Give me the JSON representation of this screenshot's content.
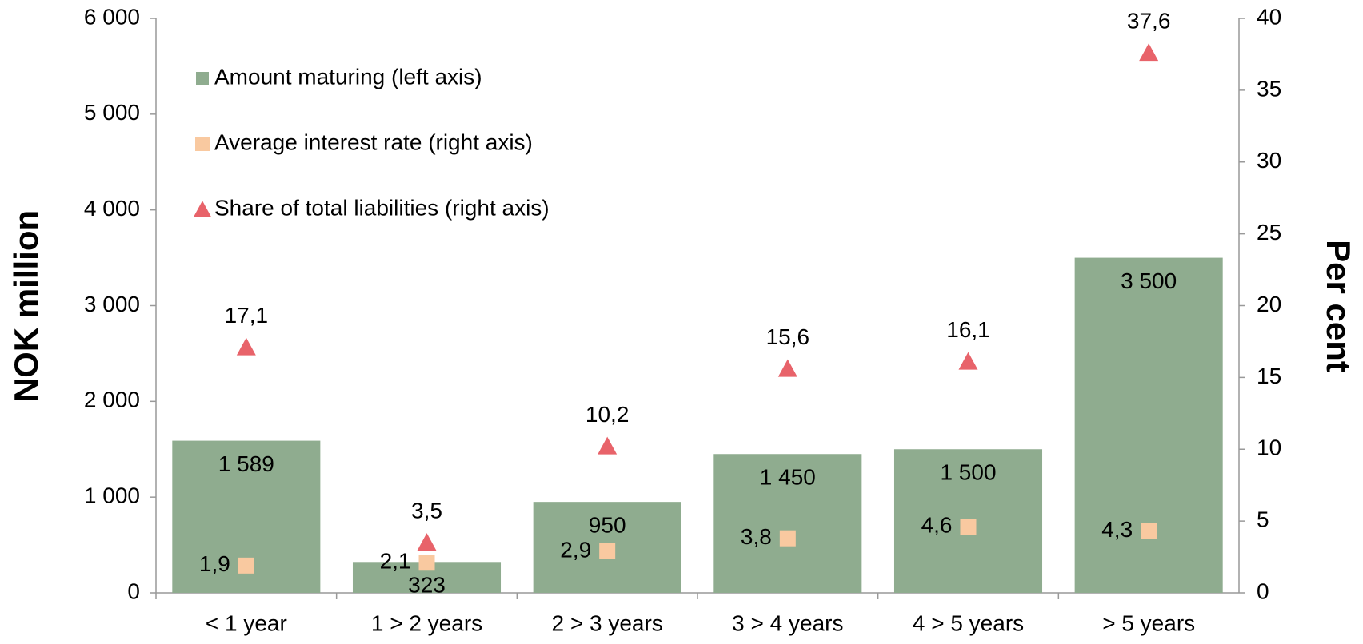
{
  "chart_data": {
    "type": "bar",
    "categories": [
      "< 1 year",
      "1 > 2 years",
      "2 > 3 years",
      "3 > 4 years",
      "4 > 5 years",
      "> 5 years"
    ],
    "ylabel": "NOK million",
    "y2label": "Per cent",
    "ylim": [
      0,
      6000
    ],
    "yticks": [
      0,
      {
        "value": 1000,
        "label": "1 000"
      },
      {
        "value": 2000,
        "label": "2 000"
      },
      {
        "value": 3000,
        "label": "3 000"
      },
      {
        "value": 4000,
        "label": "4 000"
      },
      {
        "value": 5000,
        "label": "5 000"
      },
      {
        "value": 6000,
        "label": "6 000"
      }
    ],
    "y2lim": [
      0,
      40
    ],
    "y2ticks": [
      0,
      5,
      10,
      15,
      20,
      25,
      30,
      35,
      40
    ],
    "legend": "upper left",
    "series": [
      {
        "name": "Amount maturing (left axis)",
        "type": "bar",
        "color": "#8fac8f",
        "values": [
          1589,
          323,
          950,
          1450,
          1500,
          3500
        ],
        "value_labels": [
          "1 589",
          "323",
          "950",
          "1 450",
          "1 500",
          "3 500"
        ]
      },
      {
        "name": "Average interest rate (right axis)",
        "type": "scatter",
        "marker": "square",
        "axis": "y2",
        "color": "#f9c9a0",
        "values": [
          1.9,
          2.1,
          2.9,
          3.8,
          4.6,
          4.3
        ],
        "value_labels": [
          "1,9",
          "2,1",
          "2,9",
          "3,8",
          "4,6",
          "4,3"
        ]
      },
      {
        "name": "Share of total liabilities (right axis)",
        "type": "scatter",
        "marker": "triangle",
        "axis": "y2",
        "color": "#e8636a",
        "values": [
          17.1,
          3.5,
          10.2,
          15.6,
          16.1,
          37.6
        ],
        "value_labels": [
          "17,1",
          "3,5",
          "10,2",
          "15,6",
          "16,1",
          "37,6"
        ]
      }
    ]
  }
}
